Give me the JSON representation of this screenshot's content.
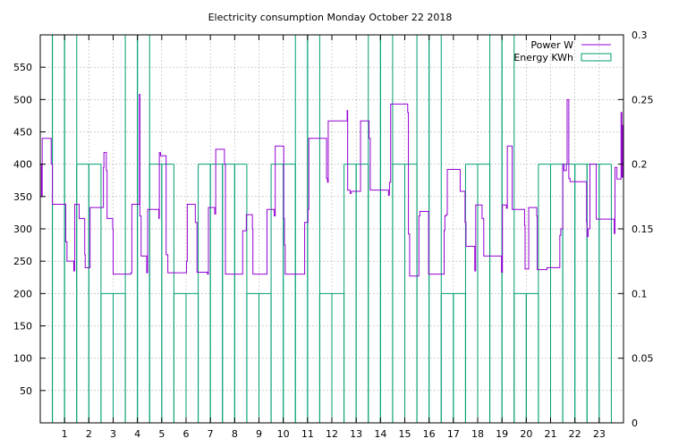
{
  "chart_data": {
    "type": "line",
    "title": "Electricity consumption Monday October 22 2018",
    "xlabel": "",
    "ylabel": "",
    "xlim": [
      0,
      24
    ],
    "ylim": [
      0,
      600
    ],
    "y2lim": [
      0,
      0.3
    ],
    "grid": true,
    "legend": "top-right",
    "x_ticks": [
      1,
      2,
      3,
      4,
      5,
      6,
      7,
      8,
      9,
      10,
      11,
      12,
      13,
      14,
      15,
      16,
      17,
      18,
      19,
      20,
      21,
      22,
      23
    ],
    "y_ticks": [
      50,
      100,
      150,
      200,
      250,
      300,
      350,
      400,
      450,
      500,
      550
    ],
    "y2_ticks": [
      "0",
      "0.05",
      "0.1",
      "0.15",
      "0.2",
      "0.25",
      "0.3"
    ],
    "series": [
      {
        "name": "Power W",
        "axis": "left",
        "color": "#9400d3",
        "style": "step",
        "points": [
          [
            0.0,
            400
          ],
          [
            0.05,
            350
          ],
          [
            0.08,
            440
          ],
          [
            0.4,
            440
          ],
          [
            0.45,
            400
          ],
          [
            0.5,
            338
          ],
          [
            1.0,
            338
          ],
          [
            1.05,
            280
          ],
          [
            1.1,
            250
          ],
          [
            1.35,
            250
          ],
          [
            1.38,
            235
          ],
          [
            1.42,
            338
          ],
          [
            1.55,
            338
          ],
          [
            1.6,
            316
          ],
          [
            1.8,
            316
          ],
          [
            1.83,
            260
          ],
          [
            1.85,
            240
          ],
          [
            2.0,
            240
          ],
          [
            2.05,
            333
          ],
          [
            2.55,
            333
          ],
          [
            2.6,
            395
          ],
          [
            2.62,
            418
          ],
          [
            2.68,
            418
          ],
          [
            2.72,
            390
          ],
          [
            2.75,
            316
          ],
          [
            2.95,
            316
          ],
          [
            2.98,
            300
          ],
          [
            3.0,
            230
          ],
          [
            3.7,
            230
          ],
          [
            3.73,
            232
          ],
          [
            3.77,
            338
          ],
          [
            4.05,
            338
          ],
          [
            4.08,
            508
          ],
          [
            4.1,
            320
          ],
          [
            4.15,
            258
          ],
          [
            4.35,
            258
          ],
          [
            4.38,
            232
          ],
          [
            4.42,
            330
          ],
          [
            4.85,
            330
          ],
          [
            4.88,
            316
          ],
          [
            4.9,
            418
          ],
          [
            4.95,
            413
          ],
          [
            5.15,
            413
          ],
          [
            5.18,
            260
          ],
          [
            5.25,
            232
          ],
          [
            6.0,
            232
          ],
          [
            6.02,
            250
          ],
          [
            6.05,
            338
          ],
          [
            6.35,
            338
          ],
          [
            6.38,
            310
          ],
          [
            6.45,
            233
          ],
          [
            6.85,
            233
          ],
          [
            6.88,
            230
          ],
          [
            6.92,
            333
          ],
          [
            7.15,
            333
          ],
          [
            7.18,
            323
          ],
          [
            7.22,
            423
          ],
          [
            7.55,
            423
          ],
          [
            7.58,
            400
          ],
          [
            7.62,
            230
          ],
          [
            8.3,
            230
          ],
          [
            8.33,
            297
          ],
          [
            8.45,
            297
          ],
          [
            8.48,
            322
          ],
          [
            8.7,
            322
          ],
          [
            8.73,
            300
          ],
          [
            8.75,
            230
          ],
          [
            9.3,
            230
          ],
          [
            9.33,
            330
          ],
          [
            9.6,
            330
          ],
          [
            9.63,
            320
          ],
          [
            9.67,
            428
          ],
          [
            10.0,
            428
          ],
          [
            10.02,
            316
          ],
          [
            10.05,
            275
          ],
          [
            10.08,
            230
          ],
          [
            10.85,
            230
          ],
          [
            10.88,
            310
          ],
          [
            11.0,
            310
          ],
          [
            11.02,
            330
          ],
          [
            11.05,
            440
          ],
          [
            11.75,
            440
          ],
          [
            11.78,
            378
          ],
          [
            11.82,
            372
          ],
          [
            11.85,
            467
          ],
          [
            12.6,
            467
          ],
          [
            12.63,
            483
          ],
          [
            12.65,
            360
          ],
          [
            12.75,
            355
          ],
          [
            12.8,
            358
          ],
          [
            13.15,
            358
          ],
          [
            13.18,
            467
          ],
          [
            13.5,
            467
          ],
          [
            13.53,
            440
          ],
          [
            13.58,
            360
          ],
          [
            14.3,
            360
          ],
          [
            14.33,
            352
          ],
          [
            14.37,
            372
          ],
          [
            14.42,
            493
          ],
          [
            15.1,
            493
          ],
          [
            15.12,
            480
          ],
          [
            15.15,
            292
          ],
          [
            15.2,
            227
          ],
          [
            15.55,
            227
          ],
          [
            15.58,
            320
          ],
          [
            15.62,
            327
          ],
          [
            15.95,
            327
          ],
          [
            15.98,
            230
          ],
          [
            16.6,
            230
          ],
          [
            16.62,
            298
          ],
          [
            16.65,
            320
          ],
          [
            16.7,
            322
          ],
          [
            16.75,
            392
          ],
          [
            17.25,
            392
          ],
          [
            17.28,
            358
          ],
          [
            17.45,
            358
          ],
          [
            17.48,
            310
          ],
          [
            17.52,
            273
          ],
          [
            17.85,
            273
          ],
          [
            17.88,
            235
          ],
          [
            17.92,
            337
          ],
          [
            18.15,
            337
          ],
          [
            18.18,
            316
          ],
          [
            18.25,
            258
          ],
          [
            18.95,
            258
          ],
          [
            18.98,
            233
          ],
          [
            19.02,
            337
          ],
          [
            19.15,
            337
          ],
          [
            19.18,
            332
          ],
          [
            19.22,
            428
          ],
          [
            19.38,
            428
          ],
          [
            19.42,
            330
          ],
          [
            19.9,
            330
          ],
          [
            19.93,
            305
          ],
          [
            19.95,
            238
          ],
          [
            20.05,
            238
          ],
          [
            20.1,
            333
          ],
          [
            20.4,
            333
          ],
          [
            20.43,
            320
          ],
          [
            20.45,
            237
          ],
          [
            20.8,
            237
          ],
          [
            20.85,
            240
          ],
          [
            21.35,
            240
          ],
          [
            21.38,
            290
          ],
          [
            21.42,
            300
          ],
          [
            21.5,
            400
          ],
          [
            21.55,
            390
          ],
          [
            21.65,
            400
          ],
          [
            21.68,
            500
          ],
          [
            21.72,
            500
          ],
          [
            21.75,
            378
          ],
          [
            21.8,
            373
          ],
          [
            22.45,
            373
          ],
          [
            22.48,
            310
          ],
          [
            22.5,
            288
          ],
          [
            22.55,
            300
          ],
          [
            22.62,
            400
          ],
          [
            22.85,
            400
          ],
          [
            22.88,
            315
          ],
          [
            23.6,
            315
          ],
          [
            23.62,
            293
          ],
          [
            23.65,
            395
          ],
          [
            23.7,
            395
          ],
          [
            23.73,
            377
          ],
          [
            23.88,
            377
          ],
          [
            23.9,
            480
          ],
          [
            23.93,
            380
          ],
          [
            23.97,
            460
          ],
          [
            24.0,
            375
          ]
        ]
      },
      {
        "name": "Energy KWh",
        "axis": "right",
        "color": "#009e73",
        "style": "bars",
        "points": [
          [
            0.25,
            0.3
          ],
          [
            0.75,
            0.3
          ],
          [
            1.25,
            0.3
          ],
          [
            1.75,
            0.2
          ],
          [
            2.25,
            0.2
          ],
          [
            2.75,
            0.1
          ],
          [
            3.25,
            0.1
          ],
          [
            3.75,
            0.3
          ],
          [
            4.25,
            0.3
          ],
          [
            4.75,
            0.2
          ],
          [
            5.25,
            0.2
          ],
          [
            5.75,
            0.1
          ],
          [
            6.25,
            0.1
          ],
          [
            6.75,
            0.2
          ],
          [
            7.25,
            0.2
          ],
          [
            7.75,
            0.2
          ],
          [
            8.25,
            0.2
          ],
          [
            8.75,
            0.1
          ],
          [
            9.25,
            0.1
          ],
          [
            9.75,
            0.2
          ],
          [
            10.25,
            0.2
          ],
          [
            10.75,
            0.3
          ],
          [
            11.25,
            0.3
          ],
          [
            11.75,
            0.1
          ],
          [
            12.25,
            0.1
          ],
          [
            12.75,
            0.2
          ],
          [
            13.25,
            0.2
          ],
          [
            13.75,
            0.3
          ],
          [
            14.25,
            0.3
          ],
          [
            14.75,
            0.2
          ],
          [
            15.25,
            0.2
          ],
          [
            15.75,
            0.3
          ],
          [
            16.25,
            0.3
          ],
          [
            16.75,
            0.1
          ],
          [
            17.25,
            0.1
          ],
          [
            17.75,
            0.2
          ],
          [
            18.25,
            0.2
          ],
          [
            18.75,
            0.3
          ],
          [
            19.25,
            0.3
          ],
          [
            19.75,
            0.1
          ],
          [
            20.25,
            0.1
          ],
          [
            20.75,
            0.2
          ],
          [
            21.25,
            0.2
          ],
          [
            21.75,
            0.2
          ],
          [
            22.25,
            0.2
          ],
          [
            22.75,
            0.2
          ],
          [
            23.25,
            0.2
          ]
        ]
      }
    ]
  }
}
